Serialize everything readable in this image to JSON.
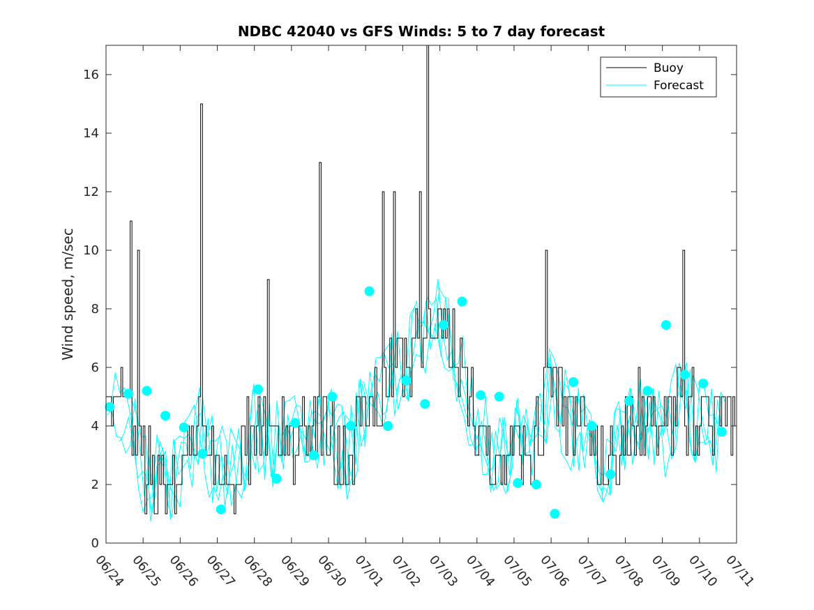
{
  "chart_data": {
    "type": "line",
    "title": "NDBC 42040 vs GFS Winds: 5 to 7 day forecast",
    "xlabel": "",
    "ylabel": "Wind speed, m/sec",
    "x_tick_labels": [
      "06/24",
      "06/25",
      "06/26",
      "06/27",
      "06/28",
      "06/29",
      "06/30",
      "07/01",
      "07/02",
      "07/03",
      "07/04",
      "07/05",
      "07/06",
      "07/07",
      "07/08",
      "07/09",
      "07/10",
      "07/11"
    ],
    "xlim_days": [
      0,
      17
    ],
    "ylim": [
      0,
      17
    ],
    "y_ticks": [
      0,
      2,
      4,
      6,
      8,
      10,
      12,
      14,
      16
    ],
    "legend": {
      "position": "top-right",
      "entries": [
        "Buoy",
        "Forecast"
      ]
    },
    "grid": false,
    "colors": {
      "buoy": "#000000",
      "forecast": "#00ffff",
      "marker": "#00ffff"
    },
    "buoy_peaks": [
      {
        "x": 0.65,
        "y": 11
      },
      {
        "x": 0.85,
        "y": 10
      },
      {
        "x": 2.55,
        "y": 15
      },
      {
        "x": 4.35,
        "y": 9
      },
      {
        "x": 5.75,
        "y": 13
      },
      {
        "x": 7.45,
        "y": 12
      },
      {
        "x": 7.75,
        "y": 12
      },
      {
        "x": 8.45,
        "y": 12
      },
      {
        "x": 8.65,
        "y": 17
      },
      {
        "x": 11.85,
        "y": 10
      },
      {
        "x": 15.55,
        "y": 10
      }
    ],
    "forecast_markers": [
      {
        "x": 0.1,
        "y": 4.65
      },
      {
        "x": 0.6,
        "y": 5.1
      },
      {
        "x": 1.1,
        "y": 5.2
      },
      {
        "x": 1.6,
        "y": 4.35
      },
      {
        "x": 2.1,
        "y": 3.95
      },
      {
        "x": 2.6,
        "y": 3.05
      },
      {
        "x": 3.1,
        "y": 1.15
      },
      {
        "x": 4.1,
        "y": 5.25
      },
      {
        "x": 4.6,
        "y": 2.2
      },
      {
        "x": 5.1,
        "y": 4.1
      },
      {
        "x": 5.6,
        "y": 3.0
      },
      {
        "x": 6.1,
        "y": 5.0
      },
      {
        "x": 6.6,
        "y": 4.0
      },
      {
        "x": 7.1,
        "y": 8.6
      },
      {
        "x": 7.6,
        "y": 4.0
      },
      {
        "x": 8.1,
        "y": 5.55
      },
      {
        "x": 8.6,
        "y": 4.75
      },
      {
        "x": 9.1,
        "y": 7.45
      },
      {
        "x": 9.6,
        "y": 8.25
      },
      {
        "x": 10.1,
        "y": 5.05
      },
      {
        "x": 10.6,
        "y": 5.0
      },
      {
        "x": 11.1,
        "y": 2.05
      },
      {
        "x": 11.6,
        "y": 2.0
      },
      {
        "x": 12.1,
        "y": 1.0
      },
      {
        "x": 12.6,
        "y": 5.5
      },
      {
        "x": 13.1,
        "y": 4.0
      },
      {
        "x": 13.6,
        "y": 2.35
      },
      {
        "x": 14.1,
        "y": 4.85
      },
      {
        "x": 14.6,
        "y": 5.2
      },
      {
        "x": 15.1,
        "y": 7.45
      },
      {
        "x": 15.6,
        "y": 5.75
      },
      {
        "x": 16.1,
        "y": 5.45
      },
      {
        "x": 16.6,
        "y": 3.8
      }
    ]
  }
}
